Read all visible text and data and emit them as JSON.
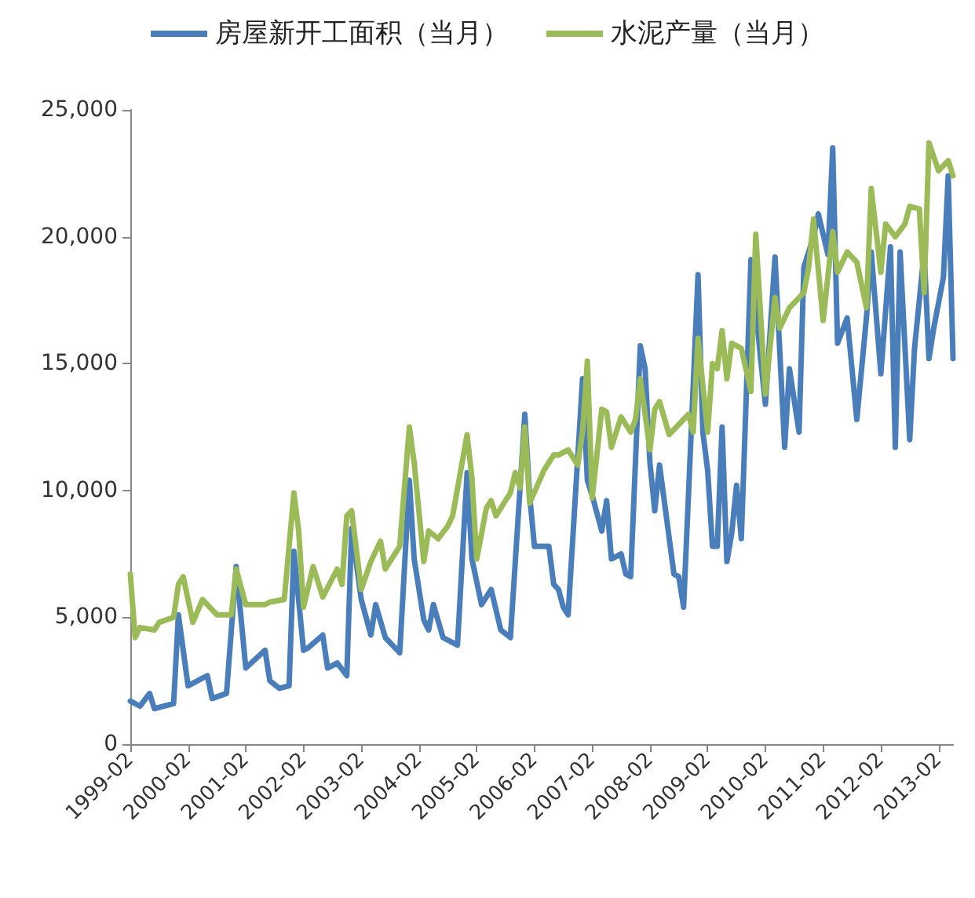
{
  "chart_data": {
    "type": "line",
    "legend": "top",
    "grid": false,
    "marker": "none",
    "line_style": "solid",
    "xlim": [
      "1999-02",
      "2013-05"
    ],
    "xticks": [
      "1999-02",
      "2000-02",
      "2001-02",
      "2002-02",
      "2003-02",
      "2004-02",
      "2005-02",
      "2006-02",
      "2007-02",
      "2008-02",
      "2009-02",
      "2010-02",
      "2011-02",
      "2012-02",
      "2013-02"
    ],
    "ylim": [
      0,
      25000
    ],
    "yticks": [
      {
        "value": 0,
        "label": "0"
      },
      {
        "value": 5000,
        "label": "5,000"
      },
      {
        "value": 10000,
        "label": "10,000"
      },
      {
        "value": 15000,
        "label": "15,000"
      },
      {
        "value": 20000,
        "label": "20,000"
      },
      {
        "value": 25000,
        "label": "25,000"
      }
    ],
    "series": [
      {
        "name": "房屋新开工面积（当月）",
        "color": "#4a7ebb",
        "x": [
          "1999-02",
          "1999-04",
          "1999-06",
          "1999-07",
          "1999-11",
          "1999-12",
          "2000-02",
          "2000-06",
          "2000-07",
          "2000-10",
          "2000-12",
          "2001-02",
          "2001-06",
          "2001-07",
          "2001-09",
          "2001-11",
          "2001-12",
          "2002-02",
          "2002-03",
          "2002-06",
          "2002-07",
          "2002-09",
          "2002-11",
          "2002-12",
          "2003-02",
          "2003-04",
          "2003-05",
          "2003-07",
          "2003-10",
          "2003-12",
          "2004-01",
          "2004-03",
          "2004-04",
          "2004-05",
          "2004-07",
          "2004-10",
          "2004-12",
          "2005-01",
          "2005-03",
          "2005-05",
          "2005-07",
          "2005-09",
          "2005-12",
          "2006-01",
          "2006-02",
          "2006-05",
          "2006-06",
          "2006-07",
          "2006-08",
          "2006-09",
          "2006-12",
          "2007-01",
          "2007-02",
          "2007-04",
          "2007-05",
          "2007-06",
          "2007-08",
          "2007-09",
          "2007-10",
          "2007-12",
          "2008-01",
          "2008-02",
          "2008-03",
          "2008-04",
          "2008-07",
          "2008-08",
          "2008-09",
          "2008-12",
          "2009-01",
          "2009-02",
          "2009-03",
          "2009-04",
          "2009-05",
          "2009-06",
          "2009-07",
          "2009-08",
          "2009-09",
          "2009-11",
          "2010-01",
          "2010-02",
          "2010-04",
          "2010-06",
          "2010-07",
          "2010-09",
          "2010-10",
          "2010-12",
          "2011-01",
          "2011-03",
          "2011-04",
          "2011-05",
          "2011-07",
          "2011-09",
          "2011-11",
          "2011-12",
          "2012-02",
          "2012-04",
          "2012-05",
          "2012-06",
          "2012-08",
          "2012-09",
          "2012-11",
          "2012-12",
          "2013-01",
          "2013-03",
          "2013-04",
          "2013-05"
        ],
        "values": [
          1700,
          1500,
          2000,
          1400,
          1600,
          5100,
          2300,
          2700,
          1800,
          2000,
          7000,
          3000,
          3700,
          2500,
          2200,
          2300,
          7600,
          3700,
          3800,
          4300,
          3000,
          3200,
          2700,
          8500,
          5700,
          4300,
          5500,
          4200,
          3600,
          10400,
          7300,
          4900,
          4500,
          5500,
          4200,
          3900,
          10700,
          7300,
          5500,
          6100,
          4500,
          4200,
          13000,
          9800,
          7800,
          7800,
          6300,
          6100,
          5400,
          5100,
          14400,
          10400,
          9800,
          8400,
          9600,
          7300,
          7500,
          6700,
          6600,
          15700,
          14800,
          11100,
          9200,
          11000,
          6700,
          6600,
          5400,
          18500,
          12300,
          10800,
          7800,
          7800,
          12500,
          7200,
          8300,
          10200,
          8100,
          19100,
          15200,
          13400,
          19200,
          11700,
          14800,
          12300,
          18800,
          20000,
          20900,
          19300,
          23500,
          15800,
          16800,
          12800,
          16800,
          19400,
          14600,
          19600,
          11700,
          19400,
          12000,
          15600,
          19400,
          15200,
          16400,
          18400,
          22400,
          15200
        ]
      },
      {
        "name": "水泥产量（当月）",
        "color": "#9bbb59",
        "x": [
          "1999-02",
          "1999-03",
          "1999-04",
          "1999-07",
          "1999-08",
          "1999-11",
          "1999-12",
          "2000-01",
          "2000-03",
          "2000-05",
          "2000-08",
          "2000-11",
          "2000-12",
          "2001-02",
          "2001-06",
          "2001-07",
          "2001-10",
          "2001-12",
          "2002-01",
          "2002-02",
          "2002-04",
          "2002-06",
          "2002-09",
          "2002-10",
          "2002-11",
          "2002-12",
          "2003-02",
          "2003-04",
          "2003-06",
          "2003-07",
          "2003-09",
          "2003-10",
          "2003-12",
          "2004-01",
          "2004-03",
          "2004-04",
          "2004-06",
          "2004-08",
          "2004-09",
          "2004-12",
          "2005-01",
          "2005-02",
          "2005-04",
          "2005-05",
          "2005-06",
          "2005-08",
          "2005-09",
          "2005-10",
          "2005-11",
          "2005-12",
          "2006-01",
          "2006-04",
          "2006-06",
          "2006-07",
          "2006-09",
          "2006-11",
          "2006-12",
          "2007-01",
          "2007-02",
          "2007-04",
          "2007-05",
          "2007-06",
          "2007-08",
          "2007-10",
          "2007-11",
          "2007-12",
          "2008-02",
          "2008-03",
          "2008-04",
          "2008-06",
          "2008-08",
          "2008-10",
          "2008-11",
          "2008-12",
          "2009-02",
          "2009-03",
          "2009-04",
          "2009-05",
          "2009-06",
          "2009-07",
          "2009-09",
          "2009-11",
          "2009-12",
          "2010-02",
          "2010-04",
          "2010-05",
          "2010-07",
          "2010-09",
          "2010-10",
          "2010-11",
          "2010-12",
          "2011-02",
          "2011-04",
          "2011-05",
          "2011-07",
          "2011-09",
          "2011-11",
          "2011-12",
          "2012-02",
          "2012-03",
          "2012-05",
          "2012-07",
          "2012-08",
          "2012-10",
          "2012-11",
          "2012-12",
          "2013-02",
          "2013-04",
          "2013-05"
        ],
        "values": [
          6700,
          4200,
          4600,
          4500,
          4800,
          5000,
          6300,
          6600,
          4800,
          5700,
          5100,
          5100,
          6900,
          5500,
          5500,
          5600,
          5700,
          9900,
          8400,
          5400,
          7000,
          5800,
          6900,
          6300,
          9000,
          9200,
          6100,
          7200,
          8000,
          6900,
          7500,
          7800,
          12500,
          11100,
          7200,
          8400,
          8100,
          8600,
          9000,
          12200,
          10500,
          7300,
          9300,
          9600,
          9000,
          9600,
          9900,
          10700,
          10100,
          12500,
          9500,
          10800,
          11400,
          11400,
          11600,
          11000,
          12300,
          15100,
          9700,
          13200,
          13100,
          11700,
          12900,
          12300,
          12800,
          14400,
          11600,
          13200,
          13500,
          12200,
          12600,
          13000,
          12300,
          16000,
          12300,
          15000,
          14800,
          16300,
          14400,
          15800,
          15600,
          13900,
          20100,
          13800,
          17600,
          16400,
          17200,
          17600,
          17800,
          18800,
          20700,
          16700,
          20200,
          18600,
          19400,
          19000,
          17200,
          21900,
          18600,
          20500,
          20000,
          20500,
          21200,
          21100,
          17800,
          23700,
          22600,
          23000,
          22400
        ]
      }
    ]
  }
}
